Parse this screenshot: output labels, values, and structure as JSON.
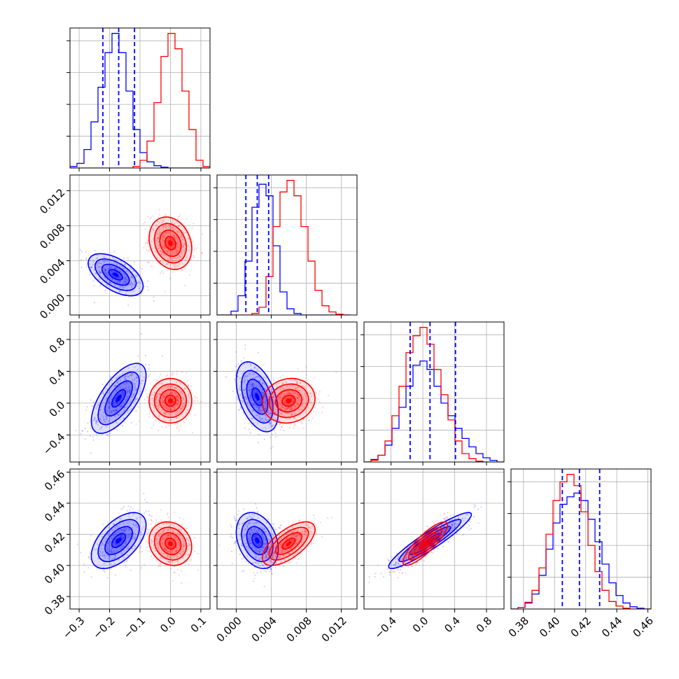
{
  "chart_data": {
    "type": "corner",
    "n_params": 4,
    "colors": {
      "series_a": "#0000ff",
      "series_b": "#ff0000"
    },
    "grid": true,
    "axes": [
      {
        "range": [
          -0.33,
          0.13
        ],
        "ticks": [
          -0.3,
          -0.2,
          -0.1,
          0.0,
          0.1
        ],
        "tick_labels": [
          "−0.3",
          "−0.2",
          "−0.1",
          "0.0",
          "0.1"
        ]
      },
      {
        "range": [
          -0.0022,
          0.0138
        ],
        "ticks": [
          0.0,
          0.004,
          0.008,
          0.012
        ],
        "tick_labels": [
          "0.000",
          "0.004",
          "0.008",
          "0.012"
        ]
      },
      {
        "range": [
          -0.74,
          1.02
        ],
        "ticks": [
          -0.4,
          0.0,
          0.4,
          0.8
        ],
        "tick_labels": [
          "−0.4",
          "0.0",
          "0.4",
          "0.8"
        ]
      },
      {
        "range": [
          0.372,
          0.462
        ],
        "ticks": [
          0.38,
          0.4,
          0.42,
          0.44,
          0.46
        ],
        "tick_labels": [
          "0.38",
          "0.40",
          "0.42",
          "0.44",
          "0.46"
        ]
      }
    ],
    "x_tick_labels_shown_on_bottom_row": true,
    "y_tick_labels_shown_on_left_column_rows": [
      1,
      2,
      3
    ],
    "diagonal_histograms": [
      {
        "param": 0,
        "bin_edges": [
          -0.33,
          -0.307,
          -0.284,
          -0.261,
          -0.238,
          -0.215,
          -0.192,
          -0.169,
          -0.146,
          -0.123,
          -0.1,
          -0.077,
          -0.054,
          -0.031,
          -0.008,
          0.015,
          0.038,
          0.061,
          0.084,
          0.107,
          0.13
        ],
        "series_a_counts": [
          2,
          6,
          24,
          60,
          105,
          150,
          175,
          150,
          100,
          50,
          20,
          8,
          3,
          1,
          0,
          0,
          0,
          0,
          0,
          0
        ],
        "series_b_counts": [
          0,
          0,
          0,
          0,
          0,
          0,
          0,
          0,
          0,
          2,
          10,
          35,
          85,
          145,
          175,
          155,
          100,
          50,
          10,
          2
        ],
        "quantiles_a": [
          -0.222,
          -0.17,
          -0.118
        ]
      },
      {
        "param": 1,
        "bin_edges": [
          -0.0022,
          -0.0014,
          -0.0006,
          0.0002,
          0.001,
          0.0018,
          0.0026,
          0.0034,
          0.0042,
          0.005,
          0.0058,
          0.0066,
          0.0074,
          0.0082,
          0.009,
          0.0098,
          0.0106,
          0.0114,
          0.0122,
          0.013
        ],
        "series_a_counts": [
          0,
          0,
          5,
          25,
          70,
          140,
          170,
          155,
          90,
          30,
          8,
          2,
          0,
          0,
          0,
          0,
          0,
          0,
          0
        ],
        "series_b_counts": [
          0,
          0,
          0,
          0,
          0,
          2,
          10,
          50,
          115,
          160,
          175,
          155,
          115,
          70,
          32,
          12,
          4,
          1,
          0
        ],
        "quantiles_a": [
          0.0011,
          0.0024,
          0.0037
        ]
      },
      {
        "param": 2,
        "bin_edges": [
          -0.74,
          -0.652,
          -0.564,
          -0.476,
          -0.388,
          -0.3,
          -0.212,
          -0.124,
          -0.036,
          0.052,
          0.14,
          0.228,
          0.316,
          0.404,
          0.492,
          0.58,
          0.668,
          0.756,
          0.844,
          0.932,
          1.02
        ],
        "series_a_counts": [
          0,
          3,
          8,
          20,
          40,
          65,
          90,
          115,
          120,
          110,
          90,
          70,
          55,
          40,
          28,
          18,
          10,
          5,
          2,
          0
        ],
        "series_b_counts": [
          0,
          2,
          8,
          25,
          55,
          90,
          130,
          150,
          160,
          140,
          110,
          80,
          50,
          25,
          10,
          4,
          1,
          0,
          0,
          0
        ],
        "quantiles_a": [
          -0.16,
          0.09,
          0.41
        ]
      },
      {
        "param": 3,
        "bin_edges": [
          0.372,
          0.3765,
          0.381,
          0.3855,
          0.39,
          0.3945,
          0.399,
          0.4035,
          0.408,
          0.4125,
          0.417,
          0.4215,
          0.426,
          0.4305,
          0.435,
          0.4395,
          0.444,
          0.4485,
          0.453,
          0.4575,
          0.462
        ],
        "series_a_counts": [
          0,
          2,
          8,
          20,
          45,
          80,
          115,
          140,
          150,
          155,
          145,
          120,
          90,
          60,
          35,
          18,
          8,
          3,
          1,
          0
        ],
        "series_b_counts": [
          0,
          2,
          9,
          25,
          55,
          100,
          145,
          170,
          180,
          165,
          130,
          85,
          50,
          25,
          10,
          4,
          1,
          0,
          0,
          0
        ],
        "quantiles_a": [
          0.405,
          0.416,
          0.429
        ]
      }
    ],
    "joint_distributions": [
      {
        "x_param": 0,
        "y_param": 1,
        "series_a": {
          "mean": [
            -0.18,
            0.0024
          ],
          "sd": [
            0.045,
            0.0012
          ],
          "corr": -0.55
        },
        "series_b": {
          "mean": [
            0.0,
            0.006
          ],
          "sd": [
            0.035,
            0.0015
          ],
          "corr": -0.2
        }
      },
      {
        "x_param": 0,
        "y_param": 2,
        "series_a": {
          "mean": [
            -0.17,
            0.06
          ],
          "sd": [
            0.045,
            0.22
          ],
          "corr": 0.65
        },
        "series_b": {
          "mean": [
            0.0,
            0.03
          ],
          "sd": [
            0.035,
            0.14
          ],
          "corr": 0.0
        }
      },
      {
        "x_param": 1,
        "y_param": 2,
        "series_a": {
          "mean": [
            0.0024,
            0.08
          ],
          "sd": [
            0.0012,
            0.22
          ],
          "corr": -0.45
        },
        "series_b": {
          "mean": [
            0.006,
            0.03
          ],
          "sd": [
            0.0015,
            0.14
          ],
          "corr": 0.1
        }
      },
      {
        "x_param": 0,
        "y_param": 3,
        "series_a": {
          "mean": [
            -0.17,
            0.416
          ],
          "sd": [
            0.045,
            0.009
          ],
          "corr": 0.55
        },
        "series_b": {
          "mean": [
            0.0,
            0.414
          ],
          "sd": [
            0.035,
            0.007
          ],
          "corr": -0.15
        }
      },
      {
        "x_param": 1,
        "y_param": 3,
        "series_a": {
          "mean": [
            0.0024,
            0.416
          ],
          "sd": [
            0.0012,
            0.009
          ],
          "corr": -0.3
        },
        "series_b": {
          "mean": [
            0.006,
            0.414
          ],
          "sd": [
            0.0015,
            0.007
          ],
          "corr": 0.65
        }
      },
      {
        "x_param": 2,
        "y_param": 3,
        "series_a": {
          "mean": [
            0.09,
            0.416
          ],
          "sd": [
            0.26,
            0.009
          ],
          "corr": 0.93
        },
        "series_b": {
          "mean": [
            0.03,
            0.414
          ],
          "sd": [
            0.14,
            0.007
          ],
          "corr": 0.85
        }
      }
    ],
    "contour_levels_sigma": [
      0.5,
      1.0,
      1.5,
      2.0
    ]
  }
}
